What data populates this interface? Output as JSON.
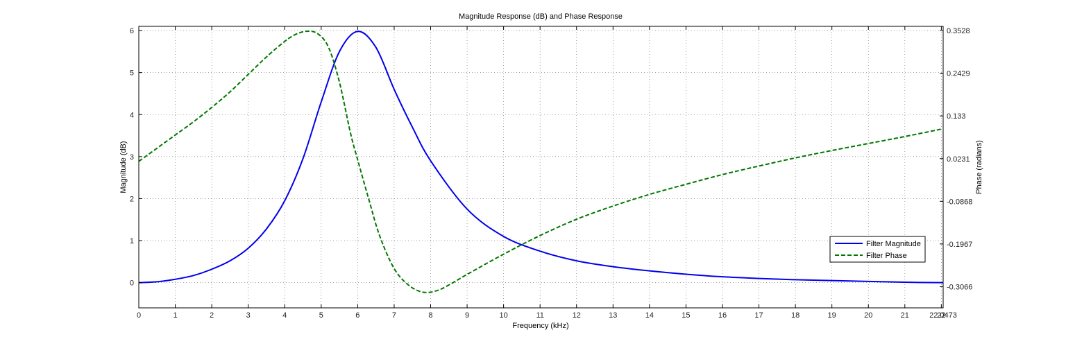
{
  "chart_data": {
    "type": "line",
    "title": "Magnitude Response (dB) and Phase Response",
    "xlabel": "Frequency (kHz)",
    "ylabel_left": "Magnitude (dB)",
    "ylabel_right": "Phase (radians)",
    "xlim": [
      0,
      22.05
    ],
    "ylim_left": [
      -0.6,
      6.1
    ],
    "ylim_right": [
      -0.3612,
      0.3637
    ],
    "x_ticks": [
      0,
      1,
      2,
      3,
      4,
      5,
      6,
      7,
      8,
      9,
      10,
      11,
      12,
      13,
      14,
      15,
      16,
      17,
      18,
      19,
      20,
      21,
      22
    ],
    "x_tick_labels": [
      "0",
      "1",
      "2",
      "3",
      "4",
      "5",
      "6",
      "7",
      "8",
      "9",
      "10",
      "11",
      "12",
      "13",
      "14",
      "15",
      "16",
      "17",
      "18",
      "19",
      "20",
      "21",
      "22"
    ],
    "x_end_label": "22.0473",
    "left_ticks": [
      0,
      1,
      2,
      3,
      4,
      5,
      6
    ],
    "left_tick_labels": [
      "0",
      "1",
      "2",
      "3",
      "4",
      "5",
      "6"
    ],
    "right_ticks": [
      -0.3066,
      -0.1967,
      -0.0868,
      0.0231,
      0.133,
      0.2429,
      0.3528
    ],
    "right_tick_labels": [
      "-0.3066",
      "-0.1967",
      "-0.0868",
      "0.0231",
      "0.133",
      "0.2429",
      "0.3528"
    ],
    "grid": true,
    "legend_position": "lower-right",
    "series": [
      {
        "name": "Filter Magnitude",
        "axis": "left",
        "color": "#0000ee",
        "style": "solid",
        "x": [
          0,
          0.5,
          1,
          1.5,
          2,
          2.5,
          3,
          3.5,
          4,
          4.5,
          5,
          5.5,
          6,
          6.5,
          7,
          7.5,
          8,
          9,
          10,
          11,
          12,
          13,
          14,
          15,
          16,
          17,
          18,
          19,
          20,
          21,
          22.05
        ],
        "y": [
          0,
          0.02,
          0.08,
          0.17,
          0.32,
          0.52,
          0.82,
          1.28,
          1.95,
          2.95,
          4.3,
          5.5,
          5.98,
          5.6,
          4.6,
          3.7,
          2.9,
          1.75,
          1.1,
          0.75,
          0.52,
          0.38,
          0.28,
          0.2,
          0.14,
          0.1,
          0.07,
          0.05,
          0.03,
          0.01,
          0
        ]
      },
      {
        "name": "Filter Phase",
        "axis": "right",
        "color": "#007700",
        "style": "dashed",
        "x": [
          0,
          0.5,
          1,
          1.5,
          2,
          2.5,
          3,
          3.5,
          4,
          4.3,
          4.6,
          4.9,
          5.2,
          5.5,
          5.8,
          6,
          6.3,
          6.6,
          7,
          7.4,
          7.8,
          8.2,
          8.6,
          9,
          10,
          11,
          12,
          13,
          14,
          15,
          16,
          17,
          18,
          19,
          20,
          21,
          22.05
        ],
        "y": [
          0.016,
          0.05,
          0.084,
          0.118,
          0.155,
          0.195,
          0.24,
          0.285,
          0.325,
          0.343,
          0.351,
          0.345,
          0.31,
          0.22,
          0.09,
          0.02,
          -0.08,
          -0.175,
          -0.26,
          -0.303,
          -0.321,
          -0.316,
          -0.297,
          -0.275,
          -0.223,
          -0.175,
          -0.133,
          -0.099,
          -0.069,
          -0.043,
          -0.018,
          0.004,
          0.025,
          0.044,
          0.062,
          0.08,
          0.1
        ]
      }
    ]
  }
}
